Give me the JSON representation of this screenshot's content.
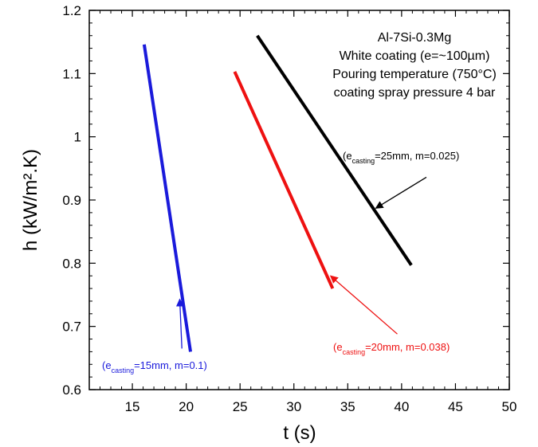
{
  "chart_data": {
    "type": "line",
    "xlabel": "t (s)",
    "ylabel": "h (kW/m².K)",
    "xlim": [
      11,
      50
    ],
    "ylim": [
      0.6,
      1.2
    ],
    "x_ticks": [
      "15",
      "20",
      "25",
      "30",
      "35",
      "40",
      "45",
      "50"
    ],
    "y_ticks": [
      "0.6",
      "0.7",
      "0.8",
      "0.9",
      "1",
      "1.1",
      "1.2"
    ],
    "grid": false,
    "annotation_block": [
      "Al-7Si-0.3Mg",
      "White coating (e=~100µm)",
      "Pouring temperature (750°C)",
      "coating spray pressure  4 bar"
    ],
    "series": [
      {
        "color": "#1a1adb",
        "x": [
          16.1,
          20.4
        ],
        "y": [
          1.146,
          0.66
        ],
        "label_prefix": "(e",
        "label_sub": "casting",
        "label_suffix": "=15mm, m=0.1)",
        "arrow_from": [
          19.6,
          0.665
        ],
        "arrow_to": [
          19.4,
          0.743
        ]
      },
      {
        "color": "#ee1111",
        "x": [
          24.5,
          33.6
        ],
        "y": [
          1.103,
          0.76
        ],
        "label_prefix": "(e",
        "label_sub": "casting",
        "label_suffix": "=20mm, m=0.038)",
        "arrow_from": [
          39.6,
          0.688
        ],
        "arrow_to": [
          33.4,
          0.78
        ]
      },
      {
        "color": "#000000",
        "x": [
          26.6,
          40.9
        ],
        "y": [
          1.16,
          0.797
        ],
        "label_prefix": "(e",
        "label_sub": "casting",
        "label_suffix": "=25mm, m=0.025)",
        "arrow_from": [
          42.3,
          0.936
        ],
        "arrow_to": [
          37.6,
          0.887
        ]
      }
    ]
  }
}
